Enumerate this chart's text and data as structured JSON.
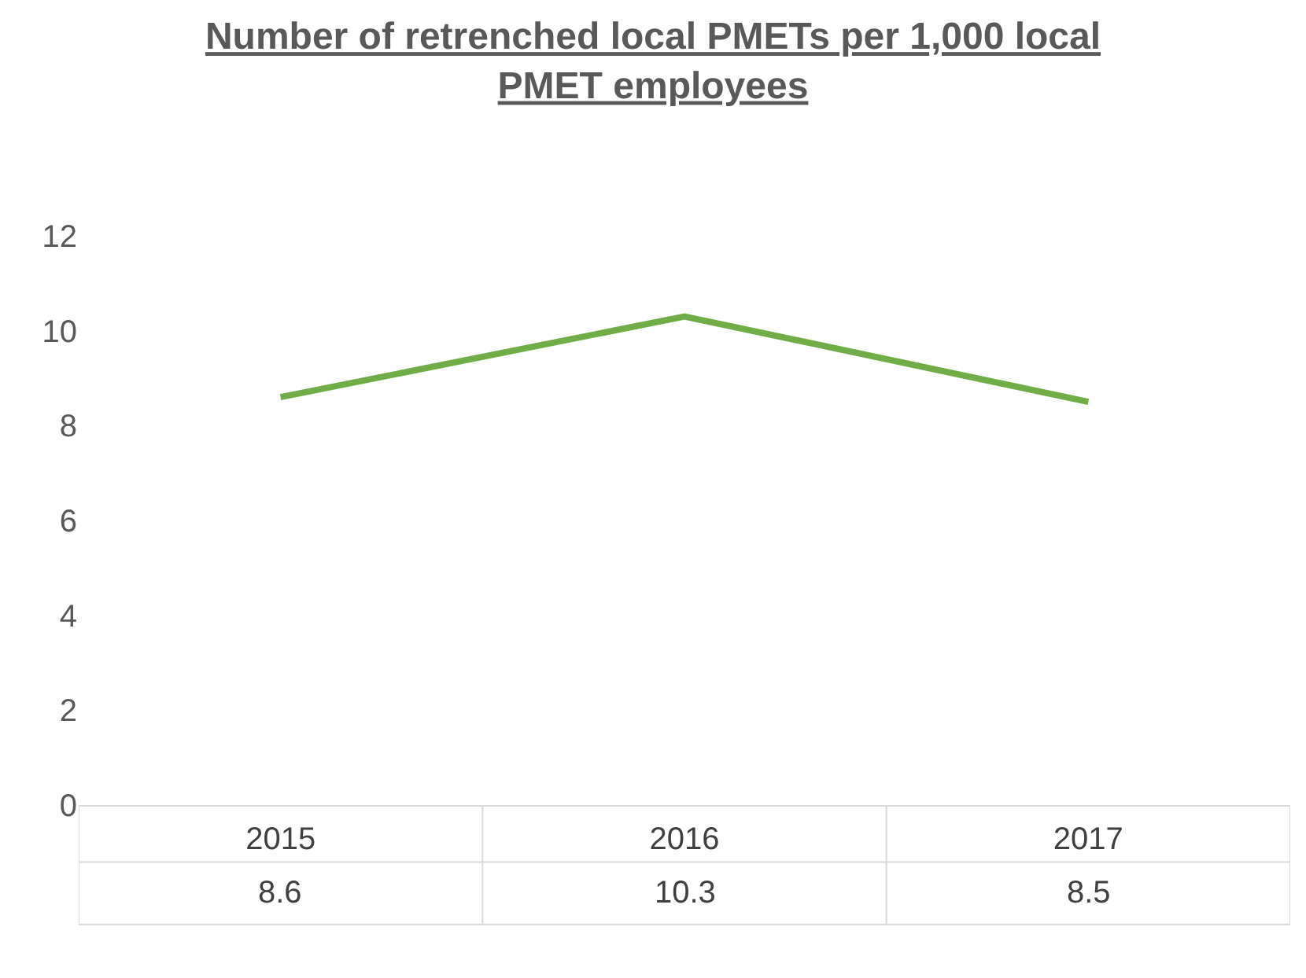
{
  "chart_data": {
    "type": "line",
    "title": "Number of retrenched local PMETs per 1,000 local PMET employees",
    "categories": [
      "2015",
      "2016",
      "2017"
    ],
    "series": [
      {
        "color": "#70ad47",
        "values": [
          8.6,
          10.3,
          8.5
        ]
      }
    ],
    "ylim": [
      0,
      12
    ],
    "yticks": [
      0,
      2,
      4,
      6,
      8,
      10,
      12
    ],
    "grid": false,
    "legend": false,
    "marker": "none",
    "line_style": "solid",
    "data_labels": true
  }
}
